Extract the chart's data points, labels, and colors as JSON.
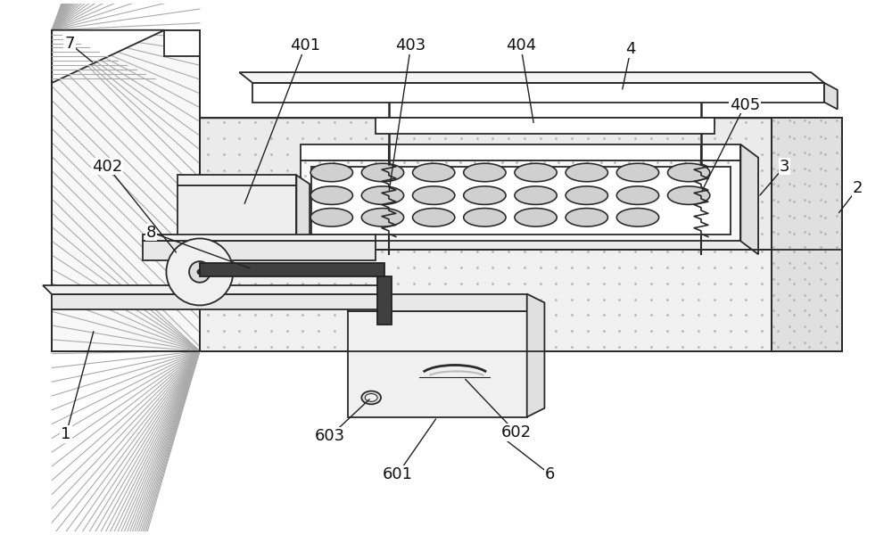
{
  "bg_color": "#ffffff",
  "lc": "#2a2a2a",
  "lw": 1.3,
  "dot_color": "#b0b0b0",
  "hatch_color": "#999999",
  "fill_light": "#f0f0f0",
  "fill_mid": "#e0e0e0",
  "fill_dark": "#c8c8c8",
  "fill_dotted": "#ebebeb",
  "fill_white": "#ffffff",
  "rod_color": "#3a3a3a",
  "hole_fill": "#d0d0d0"
}
